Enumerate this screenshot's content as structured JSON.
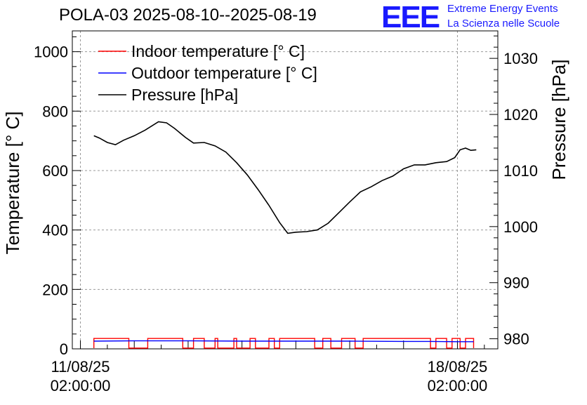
{
  "header": {
    "title": "POLA-03 2025-08-10--2025-08-19",
    "logo_text": "EEE",
    "logo_line1": "Extreme Energy Events",
    "logo_line2": "La Scienza nelle Scuole",
    "logo_color": "#1a1aff"
  },
  "chart_data": {
    "type": "line",
    "title": "POLA-03 2025-08-10--2025-08-19",
    "ylabel": "Temperature [° C]",
    "y2label": "Pressure [hPa]",
    "ylim": [
      0,
      1070
    ],
    "y2lim": [
      978.2,
      1034.9
    ],
    "xlim": [
      -0.15,
      7.75
    ],
    "y_ticks": [
      0,
      200,
      400,
      600,
      800,
      1000
    ],
    "y2_ticks": [
      980,
      990,
      1000,
      1010,
      1020,
      1030
    ],
    "x_ticks": [
      {
        "x": 0,
        "line1": "11/08/25",
        "line2": "02:00:00"
      },
      {
        "x": 7,
        "line1": "18/08/25",
        "line2": "02:00:00"
      }
    ],
    "grid": true,
    "legend_position": "top-left",
    "series": [
      {
        "name": "Indoor temperature [° C]",
        "color": "#ff0000",
        "axis": "left",
        "baseline": 35,
        "dips": [
          [
            0.9,
            1.25
          ],
          [
            1.9,
            2.1
          ],
          [
            2.3,
            2.5
          ],
          [
            2.55,
            2.85
          ],
          [
            2.9,
            3.15
          ],
          [
            3.25,
            3.5
          ],
          [
            3.6,
            3.7
          ],
          [
            4.35,
            4.5
          ],
          [
            4.65,
            4.85
          ],
          [
            5.1,
            5.25
          ],
          [
            6.5,
            6.6
          ],
          [
            6.8,
            6.9
          ],
          [
            7.05,
            7.15
          ]
        ],
        "x": [
          0.25,
          0.5,
          0.8,
          1.2,
          2.0,
          3.0,
          4.0,
          5.0,
          6.0,
          7.0,
          7.3
        ],
        "values": [
          36,
          38,
          37,
          35,
          35,
          35,
          35,
          35,
          34,
          35,
          35
        ]
      },
      {
        "name": "Outdoor temperature [° C]",
        "color": "#0000ff",
        "axis": "left",
        "x": [
          0.25,
          1.0,
          2.0,
          3.0,
          4.0,
          5.0,
          6.0,
          6.5,
          7.0,
          7.3
        ],
        "values": [
          26,
          27,
          27,
          26,
          26,
          26,
          25,
          25,
          24,
          24
        ]
      },
      {
        "name": "Pressure [hPa]",
        "color": "#000000",
        "axis": "right",
        "x": [
          0.25,
          0.35,
          0.5,
          0.65,
          0.8,
          1.0,
          1.2,
          1.45,
          1.6,
          1.75,
          1.95,
          2.1,
          2.3,
          2.5,
          2.7,
          2.9,
          3.1,
          3.3,
          3.5,
          3.7,
          3.85,
          4.0,
          4.2,
          4.4,
          4.6,
          4.8,
          5.0,
          5.2,
          5.4,
          5.6,
          5.8,
          6.0,
          6.2,
          6.4,
          6.6,
          6.8,
          6.95,
          7.05,
          7.15,
          7.25,
          7.35
        ],
        "values": [
          1016.2,
          1015.8,
          1015.0,
          1014.6,
          1015.4,
          1016.2,
          1017.2,
          1018.7,
          1018.5,
          1017.5,
          1015.9,
          1014.9,
          1015.0,
          1014.4,
          1013.3,
          1011.4,
          1009.2,
          1006.6,
          1003.8,
          1000.7,
          998.8,
          999.0,
          999.1,
          999.4,
          1000.6,
          1002.5,
          1004.4,
          1006.2,
          1007.1,
          1008.2,
          1009.0,
          1010.3,
          1011.0,
          1011.0,
          1011.4,
          1011.6,
          1012.3,
          1013.7,
          1014.0,
          1013.6,
          1013.7
        ]
      }
    ]
  }
}
